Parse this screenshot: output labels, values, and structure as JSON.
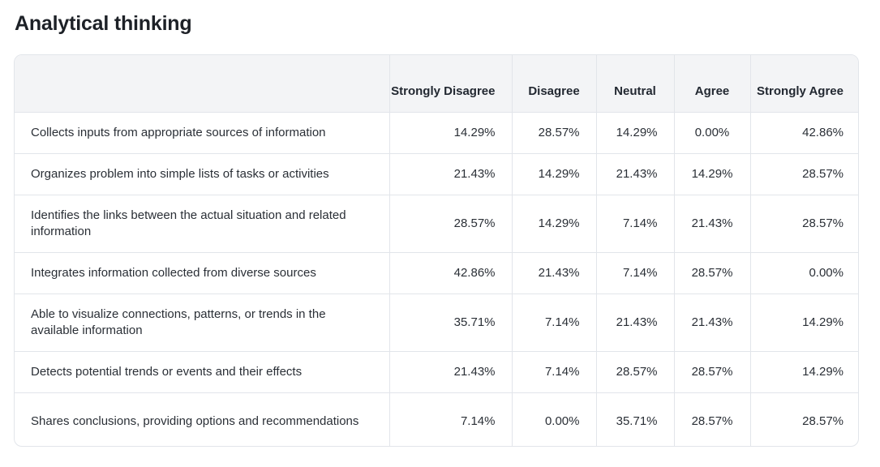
{
  "title": "Analytical thinking",
  "columns": [
    "Strongly Disagree",
    "Disagree",
    "Neutral",
    "Agree",
    "Strongly Agree"
  ],
  "rows": [
    {
      "label": "Collects inputs from appropriate sources of information",
      "values": [
        "14.29%",
        "28.57%",
        "14.29%",
        "0.00%",
        "42.86%"
      ]
    },
    {
      "label": "Organizes problem into simple lists of tasks or activities",
      "values": [
        "21.43%",
        "14.29%",
        "21.43%",
        "14.29%",
        "28.57%"
      ]
    },
    {
      "label": "Identifies the links between the actual situation and related information",
      "values": [
        "28.57%",
        "14.29%",
        "7.14%",
        "21.43%",
        "28.57%"
      ]
    },
    {
      "label": "Integrates information collected from diverse sources",
      "values": [
        "42.86%",
        "21.43%",
        "7.14%",
        "28.57%",
        "0.00%"
      ]
    },
    {
      "label": "Able to visualize connections, patterns, or trends in the available information",
      "values": [
        "35.71%",
        "7.14%",
        "21.43%",
        "21.43%",
        "14.29%"
      ]
    },
    {
      "label": "Detects potential trends or events and their effects",
      "values": [
        "21.43%",
        "7.14%",
        "28.57%",
        "28.57%",
        "14.29%"
      ]
    },
    {
      "label": "Shares conclusions, providing options and recommendations",
      "values": [
        "7.14%",
        "0.00%",
        "35.71%",
        "28.57%",
        "28.57%"
      ]
    }
  ]
}
